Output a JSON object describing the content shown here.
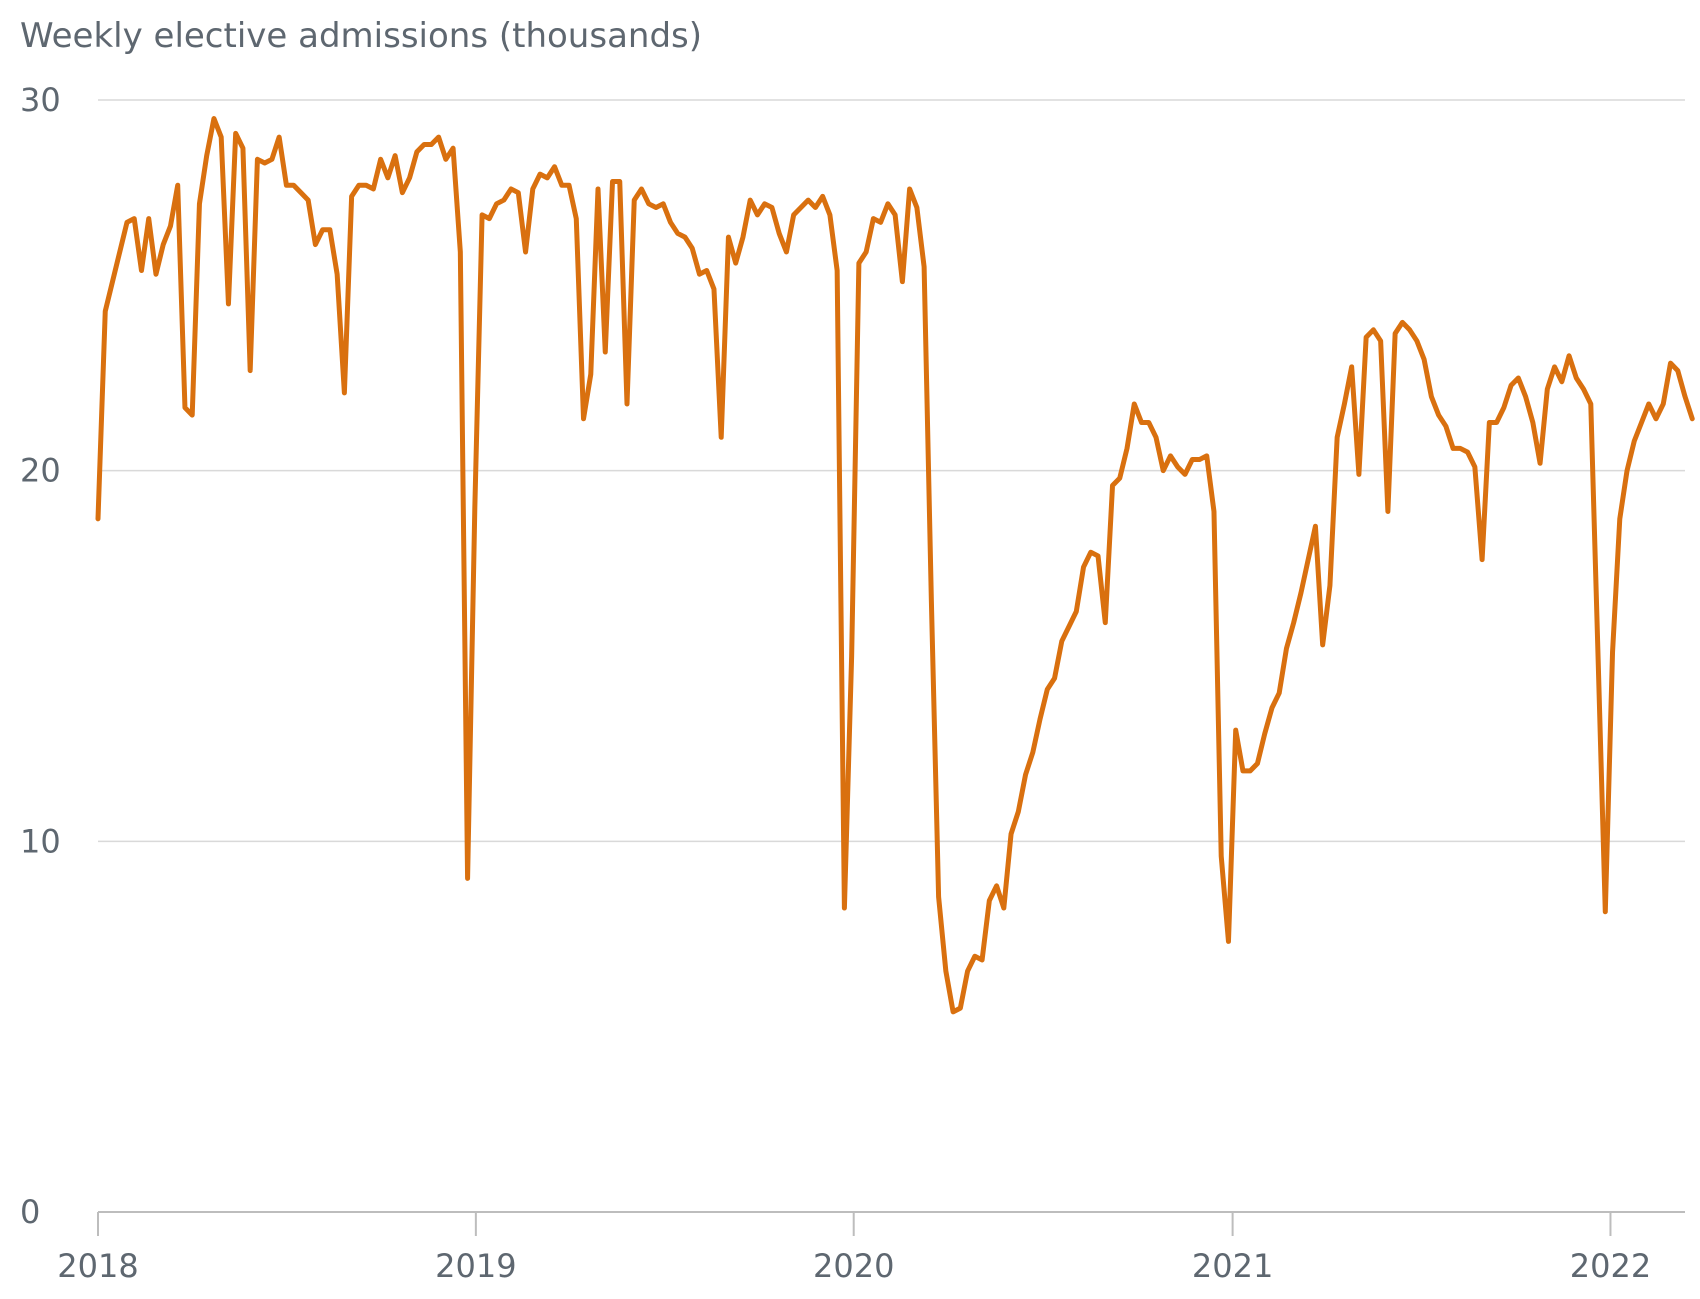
{
  "chart_data": {
    "type": "line",
    "ylabel": "Weekly elective admissions (thousands)",
    "title": "",
    "ylim": [
      0,
      30
    ],
    "yticks": [
      "0",
      "10",
      "20",
      "30"
    ],
    "xlim": [
      "2018-01-01",
      "2022-03-14"
    ],
    "xticks": [
      {
        "label": "2018",
        "date": "2018-01-01"
      },
      {
        "label": "2019",
        "date": "2019-01-01"
      },
      {
        "label": "2020",
        "date": "2020-01-01"
      },
      {
        "label": "2021",
        "date": "2021-01-01"
      },
      {
        "label": "2022",
        "date": "2022-01-01"
      }
    ],
    "grid": true,
    "colors": {
      "line": "#d9700f",
      "grid": "#d9d9d9",
      "axis": "#bdbdbd",
      "text": "#5e6770"
    },
    "series": [
      {
        "start": "2018-01-01",
        "step_days": 7,
        "values": [
          18.7,
          24.3,
          25.1,
          25.9,
          26.7,
          26.8,
          25.4,
          26.8,
          25.3,
          26.1,
          26.6,
          27.7,
          21.7,
          21.5,
          27.2,
          28.5,
          29.5,
          29.0,
          24.5,
          29.1,
          28.7,
          22.7,
          28.4,
          28.3,
          28.4,
          29.0,
          27.7,
          27.7,
          27.5,
          27.3,
          26.1,
          26.5,
          26.5,
          25.3,
          22.1,
          27.4,
          27.7,
          27.7,
          27.6,
          28.4,
          27.9,
          28.5,
          27.5,
          27.9,
          28.6,
          28.8,
          28.8,
          29.0,
          28.4,
          28.7,
          25.9,
          9.0,
          19.0,
          26.9,
          26.8,
          27.2,
          27.3,
          27.6,
          27.5,
          25.9,
          27.6,
          28.0,
          27.9,
          28.2,
          27.7,
          27.7,
          26.8,
          21.4,
          22.6,
          27.6,
          23.2,
          27.8,
          27.8,
          21.8,
          27.3,
          27.6,
          27.2,
          27.1,
          27.2,
          26.7,
          26.4,
          26.3,
          26.0,
          25.3,
          25.4,
          24.9,
          20.9,
          26.3,
          25.6,
          26.3,
          27.3,
          26.9,
          27.2,
          27.1,
          26.4,
          25.9,
          26.9,
          27.1,
          27.3,
          27.1,
          27.4,
          26.9,
          25.4,
          8.2,
          15.0,
          25.6,
          25.9,
          26.8,
          26.7,
          27.2,
          26.9,
          25.1,
          27.6,
          27.1,
          25.5,
          16.5,
          8.5,
          6.5,
          5.4,
          5.5,
          6.5,
          6.9,
          6.8,
          8.4,
          8.8,
          8.2,
          10.2,
          10.8,
          11.8,
          12.4,
          13.3,
          14.1,
          14.4,
          15.4,
          15.8,
          16.2,
          17.4,
          17.8,
          17.7,
          15.9,
          19.6,
          19.8,
          20.6,
          21.8,
          21.3,
          21.3,
          20.9,
          20.0,
          20.4,
          20.1,
          19.9,
          20.3,
          20.3,
          20.4,
          18.9,
          9.6,
          7.3,
          13.0,
          11.9,
          11.9,
          12.1,
          12.9,
          13.6,
          14.0,
          15.2,
          15.9,
          16.7,
          17.6,
          18.5,
          15.3,
          16.9,
          20.9,
          21.8,
          22.8,
          19.9,
          23.6,
          23.8,
          23.5,
          18.9,
          23.7,
          24.0,
          23.8,
          23.5,
          23.0,
          22.0,
          21.5,
          21.2,
          20.6,
          20.6,
          20.5,
          20.1,
          17.6,
          21.3,
          21.3,
          21.7,
          22.3,
          22.5,
          22.0,
          21.3,
          20.2,
          22.2,
          22.8,
          22.4,
          23.1,
          22.5,
          22.2,
          21.8,
          15.0,
          8.1,
          15.1,
          18.7,
          20.0,
          20.8,
          21.3,
          21.8,
          21.4,
          21.8,
          22.9,
          22.7,
          22.0,
          21.4
        ]
      }
    ]
  }
}
